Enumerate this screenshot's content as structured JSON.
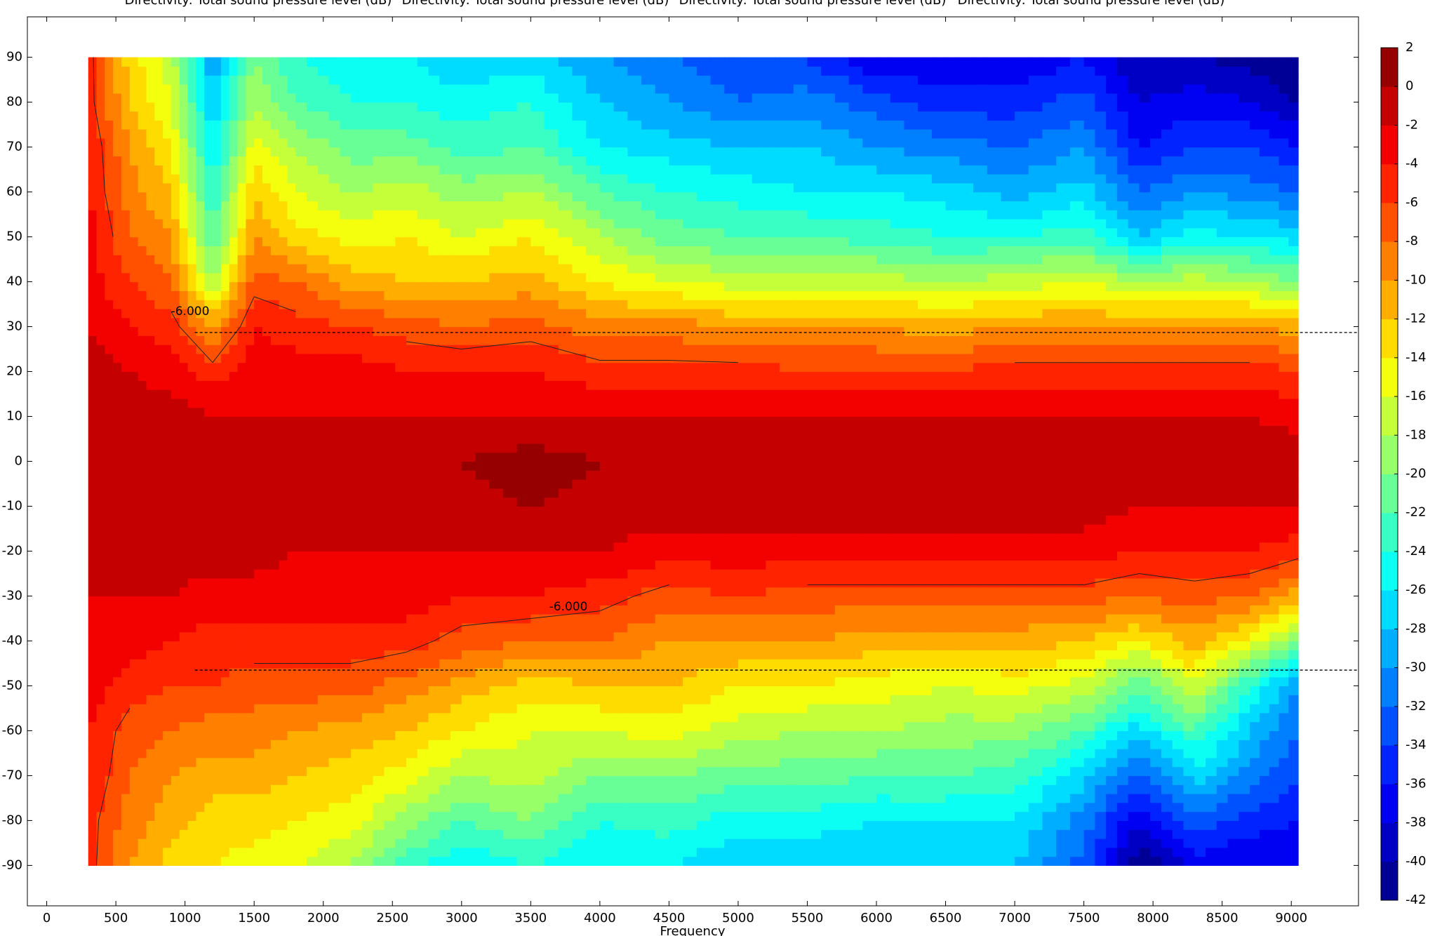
{
  "chart_data": {
    "type": "contour",
    "titles": [
      "Directivity: Total sound pressure level (dB)",
      "Directivity: Total sound pressure level (dB)",
      "Directivity: Total sound pressure level (dB)",
      "Directivity: Total sound pressure level (dB)"
    ],
    "x_label": "Frequency",
    "colormap": "jet",
    "x": [
      300,
      600,
      900,
      1200,
      1500,
      1800,
      2200,
      2600,
      3000,
      3500,
      4000,
      4500,
      5000,
      5500,
      6000,
      6500,
      7000,
      7500,
      7900,
      8300,
      8700,
      9050
    ],
    "y": [
      -90,
      -80,
      -70,
      -60,
      -50,
      -40,
      -30,
      -20,
      -10,
      0,
      10,
      20,
      30,
      40,
      50,
      60,
      70,
      80,
      90
    ],
    "z": [
      [
        -5,
        -5,
        -4,
        -4,
        -3,
        -3,
        -2,
        -1,
        -1,
        0,
        -1,
        -1,
        -2,
        -3,
        -3,
        -4,
        -4,
        -5,
        -5
      ],
      [
        -10,
        -9,
        -8,
        -7,
        -5,
        -3,
        -2,
        -1,
        -1,
        0,
        -1,
        -2,
        -4,
        -6,
        -8,
        -9,
        -10,
        -12,
        -13
      ],
      [
        -13,
        -11,
        -10,
        -8,
        -6,
        -4,
        -2,
        -1,
        -1,
        0,
        -1,
        -3,
        -5,
        -8,
        -10,
        -12,
        -14,
        -16,
        -17
      ],
      [
        -14,
        -13,
        -11,
        -9,
        -6,
        -5,
        -3,
        -1,
        -1,
        0,
        -2,
        -5,
        -10,
        -18,
        -22,
        -24,
        -26,
        -28,
        -30
      ],
      [
        -15,
        -13,
        -11,
        -9,
        -7,
        -5,
        -3,
        -1,
        -1,
        0,
        -2,
        -3,
        -4,
        -7,
        -10,
        -12,
        -15,
        -18,
        -20
      ],
      [
        -16,
        -14,
        -12,
        -10,
        -7,
        -5,
        -3,
        -2,
        -1,
        0,
        -2,
        -3,
        -5,
        -8,
        -13,
        -16,
        -18,
        -22,
        -24
      ],
      [
        -18,
        -15,
        -13,
        -11,
        -7,
        -5,
        -3,
        -2,
        -1,
        0,
        -2,
        -3,
        -6,
        -11,
        -15,
        -18,
        -21,
        -24,
        -26
      ],
      [
        -23,
        -19,
        -15,
        -12,
        -9,
        -5,
        -3,
        -2,
        -1,
        0,
        -2,
        -4,
        -7,
        -12,
        -14,
        -17,
        -21,
        -24,
        -26
      ],
      [
        -26,
        -22,
        -18,
        -14,
        -11,
        -7,
        -4,
        -2,
        -1,
        0,
        -2,
        -4,
        -8,
        -12,
        -16,
        -19,
        -23,
        -25,
        -28
      ],
      [
        -24,
        -20,
        -17,
        -16,
        -13,
        -8,
        -4,
        -2,
        0,
        1,
        -2,
        -4,
        -7,
        -11,
        -14,
        -18,
        -22,
        -24,
        -27
      ],
      [
        -26,
        -24,
        -20,
        -16,
        -12,
        -8,
        -5,
        -2,
        -1,
        0,
        -2,
        -5,
        -9,
        -14,
        -18,
        -22,
        -26,
        -28,
        -30
      ],
      [
        -26,
        -23,
        -20,
        -15,
        -12,
        -10,
        -7,
        -3,
        -1,
        0,
        -2,
        -5,
        -9,
        -16,
        -21,
        -24,
        -27,
        -30,
        -32
      ],
      [
        -28,
        -25,
        -21,
        -17,
        -14,
        -10,
        -6,
        -3,
        -1,
        0,
        -2,
        -5,
        -10,
        -17,
        -22,
        -25,
        -28,
        -32,
        -34
      ],
      [
        -28,
        -25,
        -21,
        -18,
        -14,
        -10,
        -7,
        -3,
        -1,
        0,
        -2,
        -6,
        -10,
        -17,
        -22,
        -26,
        -28,
        -31,
        -34
      ],
      [
        -28,
        -26,
        -22,
        -18,
        -15,
        -11,
        -7,
        -3,
        -1,
        0,
        -2,
        -6,
        -10,
        -17,
        -23,
        -26,
        -30,
        -33,
        -38
      ],
      [
        -28,
        -26,
        -22,
        -19,
        -16,
        -11,
        -7,
        -3,
        -1,
        0,
        -2,
        -6,
        -11,
        -18,
        -24,
        -27,
        -31,
        -35,
        -38
      ],
      [
        -28,
        -26,
        -23,
        -19,
        -15,
        -11,
        -7,
        -3,
        -1,
        0,
        -2,
        -5,
        -10,
        -17,
        -24,
        -29,
        -32,
        -35,
        -38
      ],
      [
        -33,
        -31,
        -27,
        -22,
        -17,
        -12,
        -7,
        -3,
        -1,
        0,
        -2,
        -5,
        -10,
        -16,
        -23,
        -27,
        -30,
        -33,
        -36
      ],
      [
        -42,
        -38,
        -33,
        -27,
        -22,
        -14,
        -8,
        -4,
        -2,
        0,
        -2,
        -5,
        -10,
        -18,
        -28,
        -32,
        -36,
        -38,
        -40
      ],
      [
        -37,
        -33,
        -27,
        -22,
        -16,
        -11,
        -7,
        -4,
        -2,
        0,
        -2,
        -5,
        -10,
        -17,
        -25,
        -30,
        -34,
        -37,
        -40
      ],
      [
        -38,
        -35,
        -31,
        -28,
        -24,
        -15,
        -8,
        -4,
        -2,
        0,
        -2,
        -5,
        -10,
        -18,
        -26,
        -31,
        -34,
        -38,
        -41
      ],
      [
        -38,
        -36,
        -34,
        -32,
        -30,
        -20,
        -11,
        -5,
        -2,
        0,
        -3,
        -6,
        -11,
        -20,
        -27,
        -32,
        -36,
        -40,
        -42
      ]
    ],
    "contour_levels": [
      {
        "value": -6,
        "label": "-6.000"
      }
    ],
    "reference_lines": [
      {
        "y": 28.7,
        "x": [
          1071,
          9486
        ]
      },
      {
        "y": -46.5,
        "x": [
          1071,
          9486
        ]
      }
    ],
    "xlim": [
      -140,
      9486
    ],
    "ylim": [
      -99,
      99
    ],
    "xticks": [
      0,
      500,
      1000,
      1500,
      2000,
      2500,
      3000,
      3500,
      4000,
      4500,
      5000,
      5500,
      6000,
      6500,
      7000,
      7500,
      8000,
      8500,
      9000
    ],
    "yticks": [
      -90,
      -80,
      -70,
      -60,
      -50,
      -40,
      -30,
      -20,
      -10,
      0,
      10,
      20,
      30,
      40,
      50,
      60,
      70,
      80,
      90
    ],
    "clim": [
      -42,
      2
    ],
    "cticks": [
      -42,
      -40,
      -38,
      -36,
      -34,
      -32,
      -30,
      -28,
      -26,
      -24,
      -22,
      -20,
      -18,
      -16,
      -14,
      -12,
      -10,
      -8,
      -6,
      -4,
      -2,
      0,
      2
    ]
  }
}
